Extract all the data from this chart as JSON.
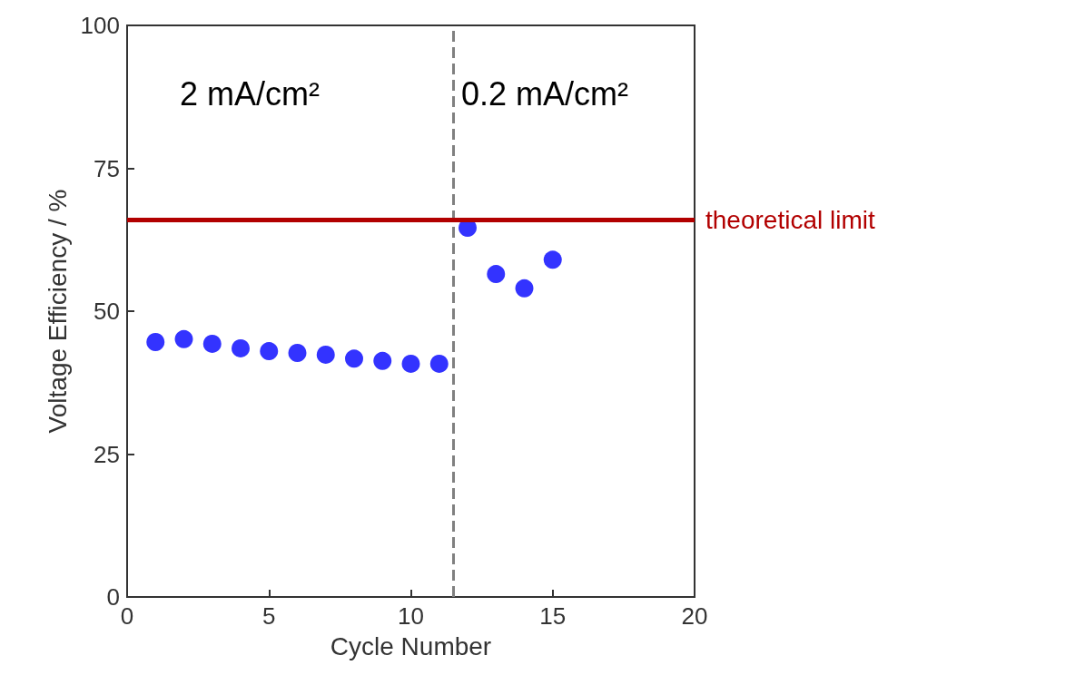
{
  "chart_data": {
    "type": "scatter",
    "xlabel": "Cycle Number",
    "ylabel": "Voltage Efficiency / %",
    "x": [
      1,
      2,
      3,
      4,
      5,
      6,
      7,
      8,
      9,
      10,
      11,
      12,
      13,
      14,
      15
    ],
    "series": [
      {
        "color": "#0000ff",
        "values": [
          44.6,
          45.1,
          44.3,
          43.5,
          43.0,
          42.7,
          42.4,
          41.7,
          41.3,
          40.8,
          40.8,
          64.6,
          56.5,
          54.0,
          59.0
        ]
      }
    ],
    "xlim": [
      0,
      20
    ],
    "xticks": [
      0,
      5,
      10,
      15,
      20
    ],
    "ylim": [
      0,
      100
    ],
    "yticks": [
      0,
      25,
      50,
      75,
      100
    ],
    "grid": false,
    "marker": "circle",
    "ref_lines": [
      {
        "axis": "x",
        "value": 11.5,
        "color": "#808080",
        "line_style": "dashed"
      },
      {
        "axis": "y",
        "value": 66,
        "label": "theoretical limit",
        "color": "#b20000",
        "line_style": "solid"
      }
    ],
    "annotations": [
      "2 mA/cm²",
      "0.2 mA/cm²"
    ]
  }
}
